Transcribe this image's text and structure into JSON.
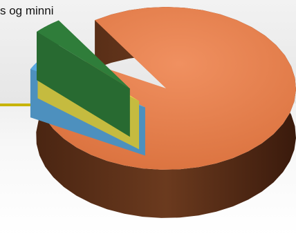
{
  "slide": {
    "title": "s og minni"
  },
  "colors": {
    "accent_line": "#c8b400"
  },
  "chart_data": {
    "type": "pie",
    "style": "3d-exploded",
    "slices": [
      {
        "value": 92,
        "color": "#e8834d"
      },
      {
        "value": 3,
        "color": "#5aa9e0"
      },
      {
        "value": 1.5,
        "color": "#e8dc4a"
      },
      {
        "value": 3.5,
        "color": "#2f7d3a"
      }
    ],
    "legend": "none"
  }
}
